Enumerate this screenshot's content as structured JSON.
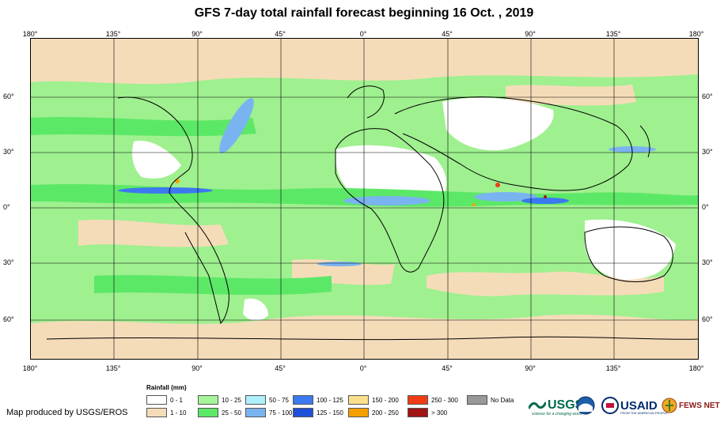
{
  "title": "GFS 7-day total rainfall forecast beginning 16 Oct. , 2019",
  "longitude_ticks": [
    "180°",
    "135°",
    "90°",
    "45°",
    "0°",
    "45°",
    "90°",
    "135°",
    "180°"
  ],
  "latitude_ticks": [
    "60°",
    "30°",
    "0°",
    "30°",
    "60°"
  ],
  "legend": {
    "title": "Rainfall (mm)",
    "items": [
      {
        "label": "0 - 1",
        "color": "#ffffff"
      },
      {
        "label": "1 - 10",
        "color": "#f5dcb9"
      },
      {
        "label": "10 - 25",
        "color": "#a6f59a"
      },
      {
        "label": "25 - 50",
        "color": "#5ce867"
      },
      {
        "label": "50 - 75",
        "color": "#aef0fb"
      },
      {
        "label": "75 - 100",
        "color": "#7ab4f0"
      },
      {
        "label": "100 - 125",
        "color": "#3c78f0"
      },
      {
        "label": "125 - 150",
        "color": "#2050d8"
      },
      {
        "label": "150 - 200",
        "color": "#fbe08c"
      },
      {
        "label": "200 - 250",
        "color": "#f6a000"
      },
      {
        "label": "250 - 300",
        "color": "#f03c14"
      },
      {
        "label": "> 300",
        "color": "#a01414"
      },
      {
        "label": "No Data",
        "color": "#999999"
      }
    ]
  },
  "credit": "Map produced by USGS/EROS",
  "logos": {
    "usgs": "USGS",
    "usgs_tagline": "science for a changing world",
    "usaid": "USAID",
    "usaid_tagline": "FROM THE AMERICAN PEOPLE",
    "fewsnet": "FEWS NET"
  }
}
